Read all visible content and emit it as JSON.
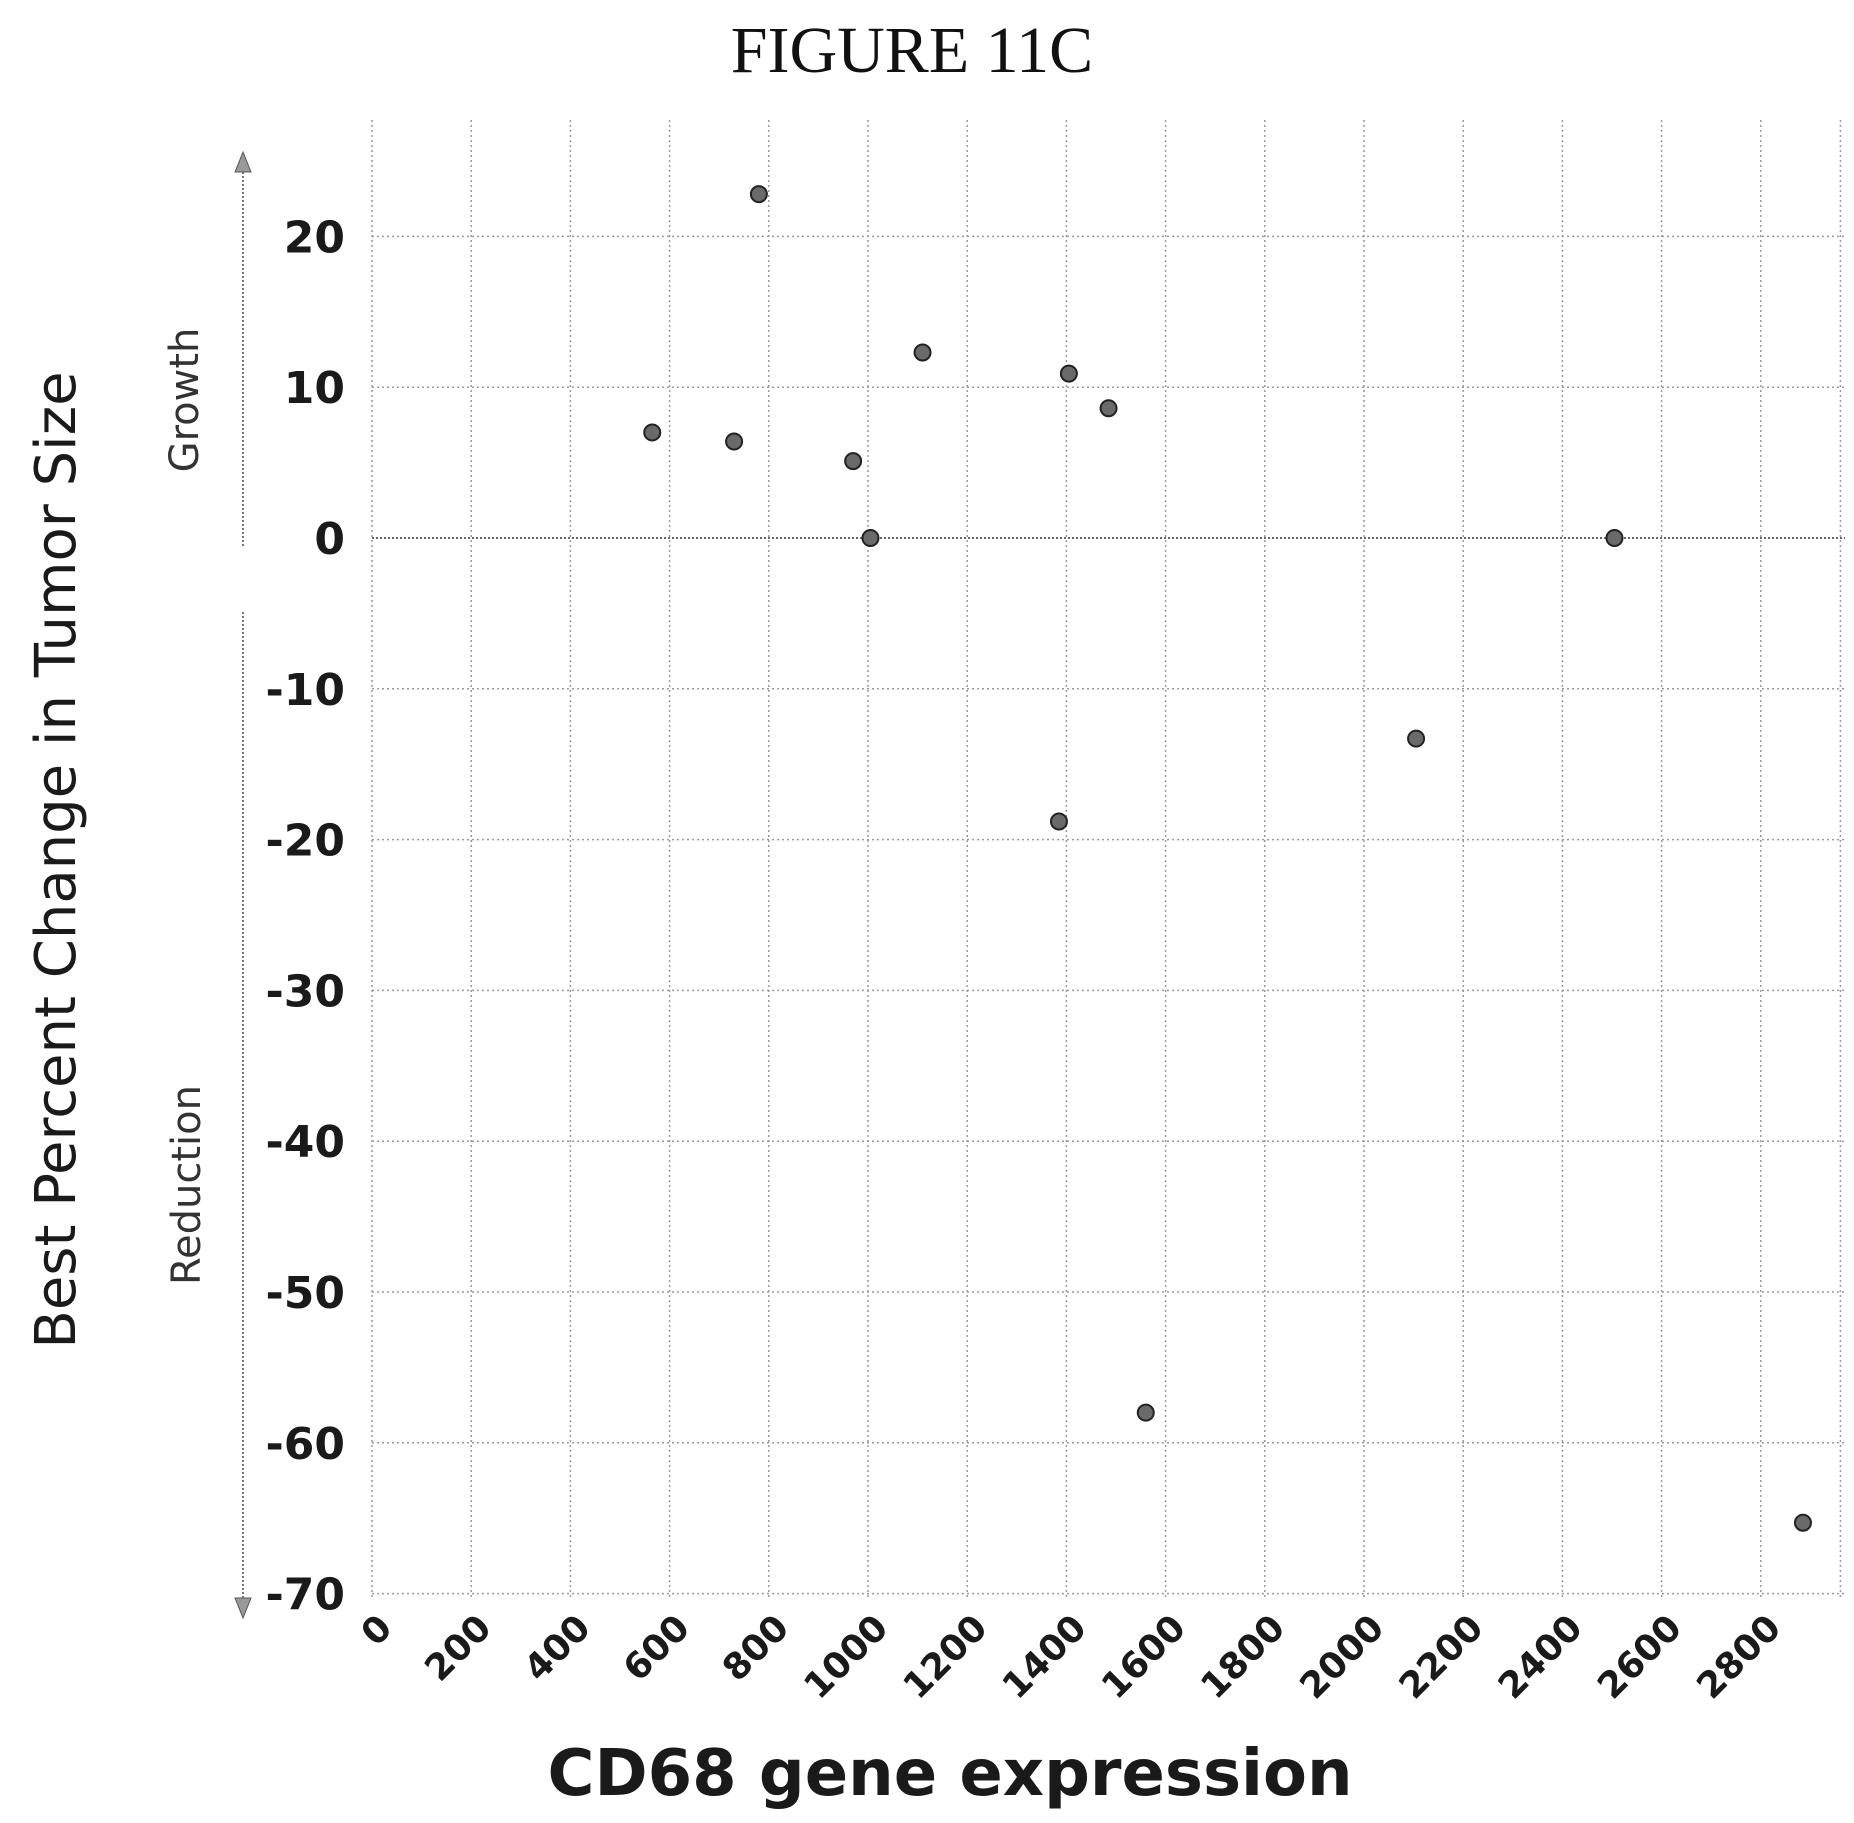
{
  "chart_data": {
    "type": "scatter",
    "title": "FIGURE 11C",
    "xlabel": "CD68 gene expression",
    "ylabel": "Best Percent Change in Tumor Size",
    "xlim": [
      0,
      2900
    ],
    "ylim": [
      -70,
      25
    ],
    "xticks": [
      0,
      200,
      400,
      600,
      800,
      1000,
      1200,
      1400,
      1600,
      1800,
      2000,
      2200,
      2400,
      2600,
      2800
    ],
    "yticks": [
      20,
      10,
      0,
      -10,
      -20,
      -30,
      -40,
      -50,
      -60,
      -70
    ],
    "xtick_labels": [
      "0",
      "200",
      "400",
      "600",
      "800",
      "1000",
      "1200",
      "1400",
      "1600",
      "1800",
      "2000",
      "2200",
      "2400",
      "2600",
      "2800"
    ],
    "ytick_labels": [
      "20",
      "10",
      "0",
      "-10",
      "-20",
      "-30",
      "-40",
      "-50",
      "-60",
      "-70"
    ],
    "grid": true,
    "annotations": {
      "growth": "Growth",
      "reduction": "Reduction"
    },
    "points": [
      {
        "x": 565,
        "y": 7
      },
      {
        "x": 730,
        "y": 6.4
      },
      {
        "x": 780,
        "y": 22.8
      },
      {
        "x": 970,
        "y": 5.1
      },
      {
        "x": 1005,
        "y": 0
      },
      {
        "x": 1110,
        "y": 12.3
      },
      {
        "x": 1385,
        "y": -18.8
      },
      {
        "x": 1405,
        "y": 10.9
      },
      {
        "x": 1485,
        "y": 8.6
      },
      {
        "x": 1560,
        "y": -58
      },
      {
        "x": 2105,
        "y": -13.3
      },
      {
        "x": 2505,
        "y": 0
      },
      {
        "x": 2885,
        "y": -65.3
      }
    ]
  }
}
